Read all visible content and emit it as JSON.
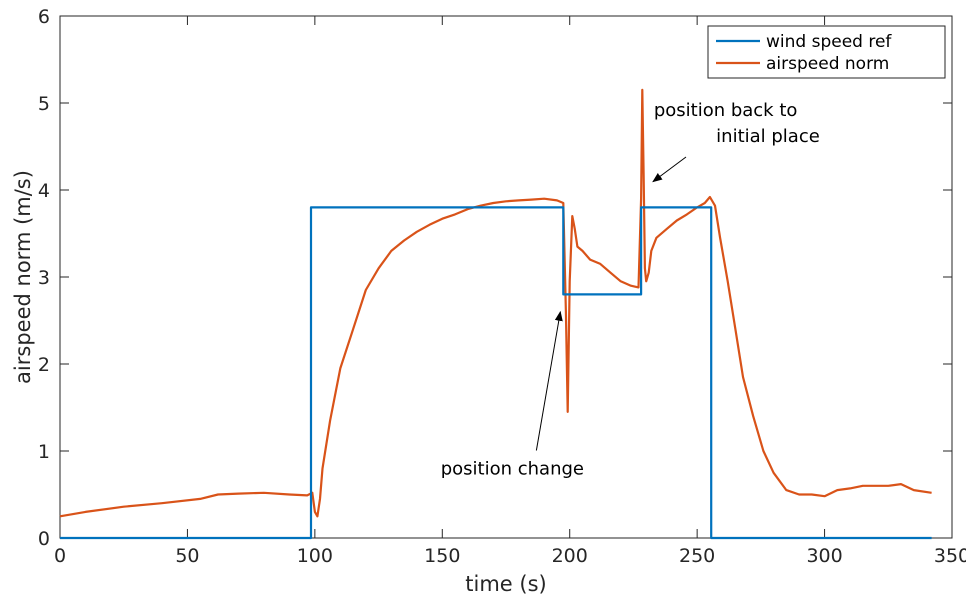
{
  "chart_data": {
    "type": "line",
    "title": "",
    "xlabel": "time (s)",
    "ylabel": "airspeed norm (m/s)",
    "xlim": [
      0,
      350
    ],
    "ylim": [
      0,
      6
    ],
    "xticks": [
      "0",
      "50",
      "100",
      "150",
      "200",
      "250",
      "300",
      "350"
    ],
    "yticks": [
      "0",
      "1",
      "2",
      "3",
      "4",
      "5",
      "6"
    ],
    "grid": false,
    "legend_position": "top-right",
    "series": [
      {
        "name": "wind speed ref",
        "color": "#0072BD",
        "x": [
          0,
          98.5,
          98.5,
          197.5,
          197.5,
          228,
          228,
          255.5,
          255.5,
          342
        ],
        "y": [
          0,
          0,
          3.8,
          3.8,
          2.8,
          2.8,
          3.8,
          3.8,
          0,
          0
        ]
      },
      {
        "name": "airspeed norm",
        "color": "#D95319",
        "x": [
          0,
          10,
          25,
          40,
          55,
          62,
          70,
          80,
          90,
          97,
          99,
          100,
          101,
          102,
          103,
          106,
          110,
          115,
          120,
          125,
          130,
          135,
          140,
          145,
          150,
          155,
          160,
          165,
          170,
          175,
          180,
          185,
          190,
          195,
          197.5,
          198.5,
          199.2,
          200,
          201,
          202,
          203,
          205,
          208,
          212,
          216,
          220,
          224,
          227,
          228,
          228.5,
          229,
          229.5,
          230,
          231,
          232,
          234,
          238,
          242,
          246,
          250,
          253,
          255,
          257,
          259,
          262,
          265,
          268,
          272,
          276,
          280,
          285,
          290,
          295,
          300,
          305,
          310,
          315,
          320,
          325,
          330,
          335,
          342
        ],
        "y": [
          0.25,
          0.3,
          0.36,
          0.4,
          0.45,
          0.5,
          0.51,
          0.52,
          0.5,
          0.49,
          0.52,
          0.3,
          0.25,
          0.45,
          0.8,
          1.35,
          1.95,
          2.4,
          2.85,
          3.1,
          3.3,
          3.42,
          3.52,
          3.6,
          3.67,
          3.72,
          3.78,
          3.82,
          3.85,
          3.87,
          3.88,
          3.89,
          3.9,
          3.88,
          3.85,
          2.6,
          1.45,
          2.95,
          3.7,
          3.55,
          3.35,
          3.3,
          3.2,
          3.15,
          3.05,
          2.95,
          2.9,
          2.88,
          3.9,
          5.15,
          4.2,
          3.1,
          2.95,
          3.05,
          3.3,
          3.45,
          3.55,
          3.65,
          3.72,
          3.8,
          3.85,
          3.92,
          3.82,
          3.45,
          2.95,
          2.4,
          1.85,
          1.4,
          1.0,
          0.75,
          0.55,
          0.5,
          0.5,
          0.48,
          0.55,
          0.57,
          0.6,
          0.6,
          0.6,
          0.62,
          0.55,
          0.52
        ]
      }
    ],
    "annotations": [
      {
        "lines": [
          "position change"
        ],
        "x": 177.5,
        "y": 0.73,
        "arrow_to": [
          197.5,
          2.6
        ]
      },
      {
        "lines": [
          "position back to",
          "initial place"
        ],
        "x": 233,
        "y": 4.85,
        "arrow_to": [
          231.5,
          4.05
        ]
      }
    ]
  }
}
